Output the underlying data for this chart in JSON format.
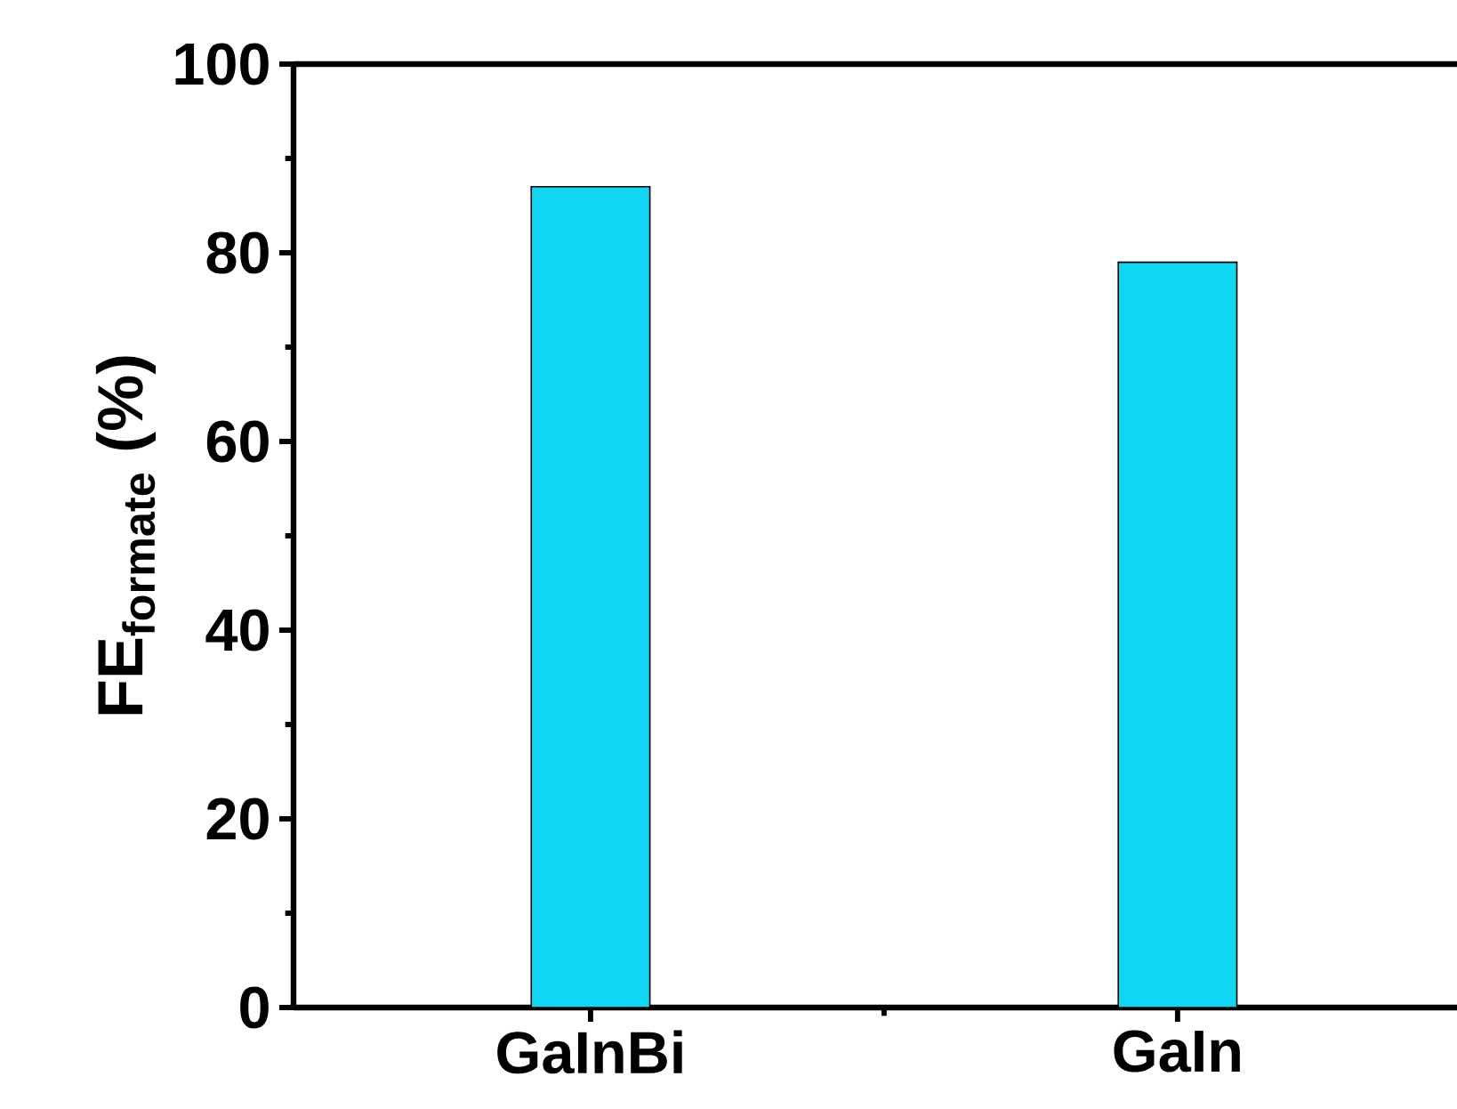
{
  "chart_data": {
    "type": "bar",
    "ylabel": "FE$_{formate}$ (%)",
    "categories": [
      "GaInBi",
      "GaIn"
    ],
    "values": [
      87,
      79
    ],
    "color": "#0fd6f2",
    "ylim": [
      0,
      100
    ],
    "yticks": [
      0,
      20,
      40,
      60,
      80,
      100
    ],
    "grid": false
  }
}
